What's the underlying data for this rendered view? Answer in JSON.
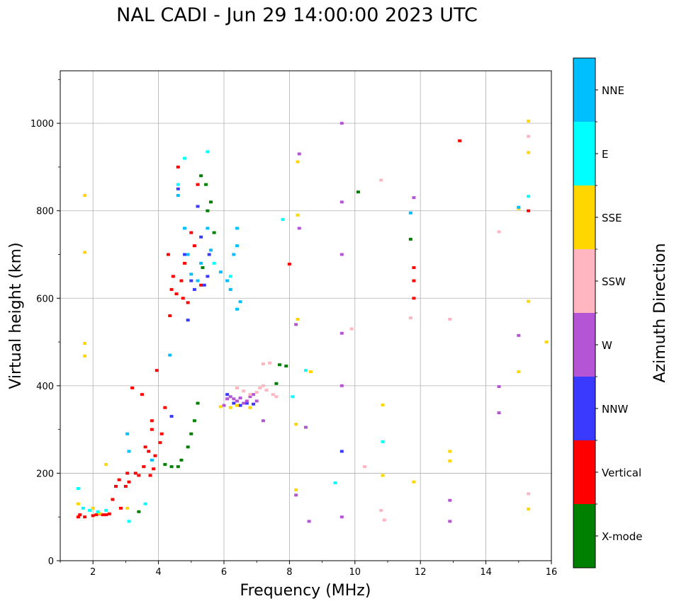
{
  "chart_data": {
    "type": "scatter",
    "title": "NAL CADI - Jun 29 14:00:00 2023 UTC",
    "xlabel": "Frequency (MHz)",
    "ylabel": "Virtual height (km)",
    "xlim": [
      1,
      16
    ],
    "ylim": [
      0,
      1120
    ],
    "xticks": [
      2,
      4,
      6,
      8,
      10,
      12,
      14,
      16
    ],
    "yticks": [
      0,
      200,
      400,
      600,
      800,
      1000
    ],
    "grid": true,
    "colorbar": {
      "label": "Azimuth Direction",
      "categories": [
        {
          "name": "X-mode",
          "color": "#008000"
        },
        {
          "name": "Vertical",
          "color": "#ff0000"
        },
        {
          "name": "NNW",
          "color": "#3a3aff"
        },
        {
          "name": "W",
          "color": "#b455d6"
        },
        {
          "name": "SSW",
          "color": "#ffb6c1"
        },
        {
          "name": "SSE",
          "color": "#ffd700"
        },
        {
          "name": "E",
          "color": "#00ffff"
        },
        {
          "name": "NNE",
          "color": "#00bfff"
        }
      ]
    },
    "series": [
      {
        "name": "Vertical",
        "points": [
          [
            1.55,
            100
          ],
          [
            1.6,
            105
          ],
          [
            1.75,
            100
          ],
          [
            2.0,
            103
          ],
          [
            2.1,
            105
          ],
          [
            2.2,
            107
          ],
          [
            2.3,
            105
          ],
          [
            2.4,
            105
          ],
          [
            2.5,
            107
          ],
          [
            2.6,
            140
          ],
          [
            2.7,
            170
          ],
          [
            2.8,
            185
          ],
          [
            2.85,
            120
          ],
          [
            3.0,
            170
          ],
          [
            3.05,
            200
          ],
          [
            3.1,
            180
          ],
          [
            3.2,
            395
          ],
          [
            3.3,
            200
          ],
          [
            3.4,
            195
          ],
          [
            3.5,
            380
          ],
          [
            3.55,
            215
          ],
          [
            3.6,
            260
          ],
          [
            3.7,
            250
          ],
          [
            3.75,
            195
          ],
          [
            3.8,
            300
          ],
          [
            3.8,
            320
          ],
          [
            3.85,
            210
          ],
          [
            3.9,
            240
          ],
          [
            3.95,
            435
          ],
          [
            4.05,
            270
          ],
          [
            4.1,
            290
          ],
          [
            4.2,
            350
          ],
          [
            4.3,
            700
          ],
          [
            4.35,
            560
          ],
          [
            4.4,
            620
          ],
          [
            4.45,
            650
          ],
          [
            4.55,
            610
          ],
          [
            4.6,
            900
          ],
          [
            4.7,
            640
          ],
          [
            4.75,
            600
          ],
          [
            4.8,
            680
          ],
          [
            4.9,
            590
          ],
          [
            5.0,
            750
          ],
          [
            5.1,
            720
          ],
          [
            5.2,
            860
          ],
          [
            5.3,
            630
          ],
          [
            8.0,
            678
          ],
          [
            11.8,
            600
          ],
          [
            11.8,
            640
          ],
          [
            11.8,
            670
          ],
          [
            13.2,
            960
          ],
          [
            15.3,
            800
          ]
        ]
      },
      {
        "name": "X-mode",
        "points": [
          [
            3.4,
            112
          ],
          [
            4.2,
            220
          ],
          [
            4.4,
            215
          ],
          [
            4.6,
            215
          ],
          [
            4.7,
            230
          ],
          [
            4.9,
            260
          ],
          [
            5.0,
            290
          ],
          [
            5.1,
            320
          ],
          [
            5.2,
            360
          ],
          [
            5.3,
            880
          ],
          [
            5.35,
            670
          ],
          [
            5.45,
            860
          ],
          [
            5.5,
            800
          ],
          [
            5.6,
            820
          ],
          [
            5.7,
            750
          ],
          [
            7.6,
            405
          ],
          [
            7.7,
            448
          ],
          [
            7.9,
            445
          ],
          [
            10.1,
            843
          ],
          [
            11.7,
            735
          ]
        ]
      },
      {
        "name": "NNW",
        "points": [
          [
            4.4,
            330
          ],
          [
            4.6,
            850
          ],
          [
            4.8,
            700
          ],
          [
            4.9,
            550
          ],
          [
            5.0,
            640
          ],
          [
            5.1,
            620
          ],
          [
            5.2,
            810
          ],
          [
            5.3,
            740
          ],
          [
            5.4,
            630
          ],
          [
            5.5,
            650
          ],
          [
            5.55,
            700
          ],
          [
            6.1,
            380
          ],
          [
            6.3,
            360
          ],
          [
            6.5,
            355
          ],
          [
            6.7,
            360
          ],
          [
            6.9,
            358
          ],
          [
            9.6,
            250
          ]
        ]
      },
      {
        "name": "W",
        "points": [
          [
            6.0,
            355
          ],
          [
            6.1,
            370
          ],
          [
            6.2,
            375
          ],
          [
            6.3,
            370
          ],
          [
            6.4,
            365
          ],
          [
            6.5,
            372
          ],
          [
            6.6,
            360
          ],
          [
            6.7,
            365
          ],
          [
            6.8,
            375
          ],
          [
            6.9,
            380
          ],
          [
            7.0,
            365
          ],
          [
            7.2,
            320
          ],
          [
            8.2,
            150
          ],
          [
            8.2,
            540
          ],
          [
            8.3,
            760
          ],
          [
            8.3,
            930
          ],
          [
            8.5,
            305
          ],
          [
            8.6,
            90
          ],
          [
            9.6,
            1000
          ],
          [
            9.6,
            820
          ],
          [
            9.6,
            700
          ],
          [
            9.6,
            520
          ],
          [
            9.6,
            400
          ],
          [
            9.6,
            100
          ],
          [
            11.8,
            830
          ],
          [
            12.9,
            90
          ],
          [
            12.9,
            138
          ],
          [
            14.4,
            398
          ],
          [
            14.4,
            338
          ],
          [
            15.0,
            515
          ]
        ]
      },
      {
        "name": "SSW",
        "points": [
          [
            6.4,
            395
          ],
          [
            6.6,
            388
          ],
          [
            6.8,
            380
          ],
          [
            7.0,
            385
          ],
          [
            7.1,
            395
          ],
          [
            7.2,
            400
          ],
          [
            7.3,
            390
          ],
          [
            7.5,
            380
          ],
          [
            7.6,
            375
          ],
          [
            7.2,
            450
          ],
          [
            7.4,
            452
          ],
          [
            9.9,
            530
          ],
          [
            10.3,
            215
          ],
          [
            10.8,
            870
          ],
          [
            10.8,
            115
          ],
          [
            10.9,
            93
          ],
          [
            11.7,
            555
          ],
          [
            12.9,
            552
          ],
          [
            14.4,
            752
          ],
          [
            15.3,
            970
          ],
          [
            15.3,
            153
          ]
        ]
      },
      {
        "name": "SSE",
        "points": [
          [
            1.55,
            130
          ],
          [
            1.75,
            835
          ],
          [
            1.75,
            705
          ],
          [
            1.75,
            497
          ],
          [
            1.75,
            468
          ],
          [
            2.0,
            120
          ],
          [
            2.2,
            108
          ],
          [
            2.4,
            220
          ],
          [
            3.05,
            120
          ],
          [
            5.9,
            352
          ],
          [
            6.2,
            350
          ],
          [
            6.4,
            355
          ],
          [
            6.8,
            350
          ],
          [
            8.2,
            312
          ],
          [
            8.2,
            162
          ],
          [
            8.25,
            790
          ],
          [
            8.25,
            912
          ],
          [
            8.25,
            552
          ],
          [
            8.65,
            432
          ],
          [
            10.85,
            356
          ],
          [
            10.85,
            195
          ],
          [
            11.8,
            180
          ],
          [
            12.9,
            250
          ],
          [
            12.9,
            228
          ],
          [
            15.0,
            432
          ],
          [
            15.0,
            805
          ],
          [
            15.3,
            1005
          ],
          [
            15.3,
            933
          ],
          [
            15.3,
            593
          ],
          [
            15.3,
            118
          ],
          [
            15.85,
            500
          ]
        ]
      },
      {
        "name": "E",
        "points": [
          [
            1.55,
            165
          ],
          [
            1.7,
            120
          ],
          [
            1.9,
            115
          ],
          [
            2.15,
            112
          ],
          [
            2.4,
            115
          ],
          [
            3.1,
            90
          ],
          [
            3.6,
            130
          ],
          [
            4.6,
            860
          ],
          [
            4.8,
            920
          ],
          [
            5.5,
            935
          ],
          [
            5.7,
            680
          ],
          [
            6.2,
            650
          ],
          [
            7.8,
            780
          ],
          [
            8.1,
            375
          ],
          [
            8.5,
            435
          ],
          [
            9.4,
            178
          ],
          [
            10.85,
            272
          ],
          [
            15.3,
            833
          ]
        ]
      },
      {
        "name": "NNE",
        "points": [
          [
            3.05,
            290
          ],
          [
            3.1,
            250
          ],
          [
            3.8,
            230
          ],
          [
            4.35,
            470
          ],
          [
            4.6,
            835
          ],
          [
            4.8,
            760
          ],
          [
            4.9,
            700
          ],
          [
            5.0,
            655
          ],
          [
            5.2,
            640
          ],
          [
            5.3,
            680
          ],
          [
            5.5,
            760
          ],
          [
            5.6,
            710
          ],
          [
            5.9,
            660
          ],
          [
            6.1,
            640
          ],
          [
            6.2,
            620
          ],
          [
            6.4,
            760
          ],
          [
            6.4,
            720
          ],
          [
            6.4,
            575
          ],
          [
            6.5,
            592
          ],
          [
            6.3,
            700
          ],
          [
            11.7,
            795
          ],
          [
            15.0,
            808
          ]
        ]
      }
    ]
  }
}
